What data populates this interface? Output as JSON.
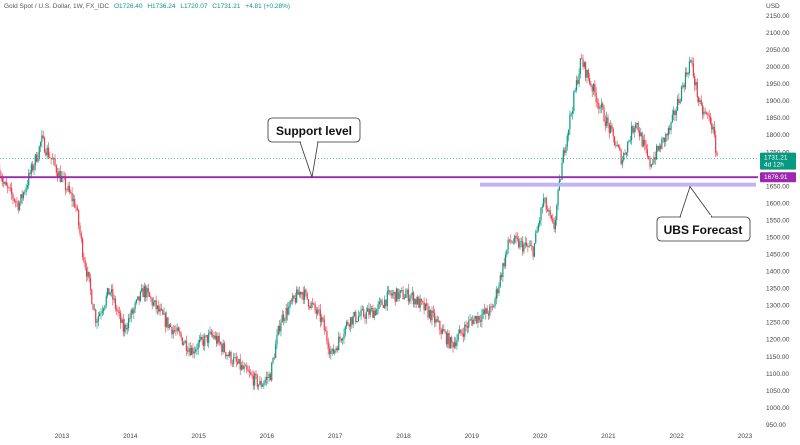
{
  "header": {
    "symbol": "Gold Spot / U.S. Dollar, 1W, FX_IDC",
    "open": "O1726.40",
    "high": "H1736.24",
    "low": "L1720.07",
    "close": "C1731.21",
    "change": "+4.81 (+0.28%)"
  },
  "colors": {
    "up": "#089981",
    "down": "#f23645",
    "support": "#9c27b0",
    "forecast": "#c5b3f0",
    "last": "#089981"
  },
  "chart_data": {
    "type": "candlestick",
    "title": "Gold Spot / U.S. Dollar, 1W, FX_IDC",
    "ylabel": "USD",
    "ylim": [
      950,
      2150
    ],
    "yticks": [
      950,
      1000,
      1050,
      1100,
      1150,
      1200,
      1250,
      1300,
      1350,
      1400,
      1450,
      1500,
      1550,
      1600,
      1650,
      1700,
      1750,
      1800,
      1850,
      1900,
      1950,
      2000,
      2050,
      2100,
      2150
    ],
    "xlim": [
      2012.09,
      2023.2
    ],
    "xticks": [
      "2013",
      "2014",
      "2015",
      "2016",
      "2017",
      "2018",
      "2019",
      "2020",
      "2021",
      "2022",
      "2023"
    ],
    "approx_close_path": [
      [
        2012.09,
        1700
      ],
      [
        2012.15,
        1654
      ],
      [
        2012.37,
        1595
      ],
      [
        2012.66,
        1757
      ],
      [
        2012.7,
        1786
      ],
      [
        2013.0,
        1669
      ],
      [
        2013.2,
        1595
      ],
      [
        2013.3,
        1463
      ],
      [
        2013.5,
        1258
      ],
      [
        2013.7,
        1346
      ],
      [
        2013.9,
        1228
      ],
      [
        2014.2,
        1346
      ],
      [
        2014.5,
        1258
      ],
      [
        2014.9,
        1170
      ],
      [
        2015.2,
        1214
      ],
      [
        2015.5,
        1140
      ],
      [
        2015.9,
        1067
      ],
      [
        2016.05,
        1097
      ],
      [
        2016.2,
        1258
      ],
      [
        2016.5,
        1346
      ],
      [
        2016.8,
        1258
      ],
      [
        2016.95,
        1155
      ],
      [
        2017.2,
        1258
      ],
      [
        2017.6,
        1287
      ],
      [
        2017.8,
        1331
      ],
      [
        2018.1,
        1331
      ],
      [
        2018.4,
        1273
      ],
      [
        2018.7,
        1185
      ],
      [
        2019.0,
        1258
      ],
      [
        2019.3,
        1287
      ],
      [
        2019.55,
        1492
      ],
      [
        2019.9,
        1463
      ],
      [
        2020.05,
        1610
      ],
      [
        2020.2,
        1522
      ],
      [
        2020.35,
        1757
      ],
      [
        2020.6,
        2021
      ],
      [
        2020.9,
        1874
      ],
      [
        2021.2,
        1728
      ],
      [
        2021.4,
        1845
      ],
      [
        2021.6,
        1713
      ],
      [
        2021.9,
        1816
      ],
      [
        2022.2,
        2021
      ],
      [
        2022.35,
        1874
      ],
      [
        2022.5,
        1845
      ],
      [
        2022.6,
        1731
      ]
    ],
    "last_price": {
      "value": 1731.21,
      "label": "1731.21",
      "countdown": "4d 12h"
    },
    "support": {
      "value": 1676.91,
      "label": "1676.91"
    },
    "forecast_level": 1655,
    "annotations": {
      "support": "Support level",
      "forecast": "UBS Forecast"
    }
  }
}
